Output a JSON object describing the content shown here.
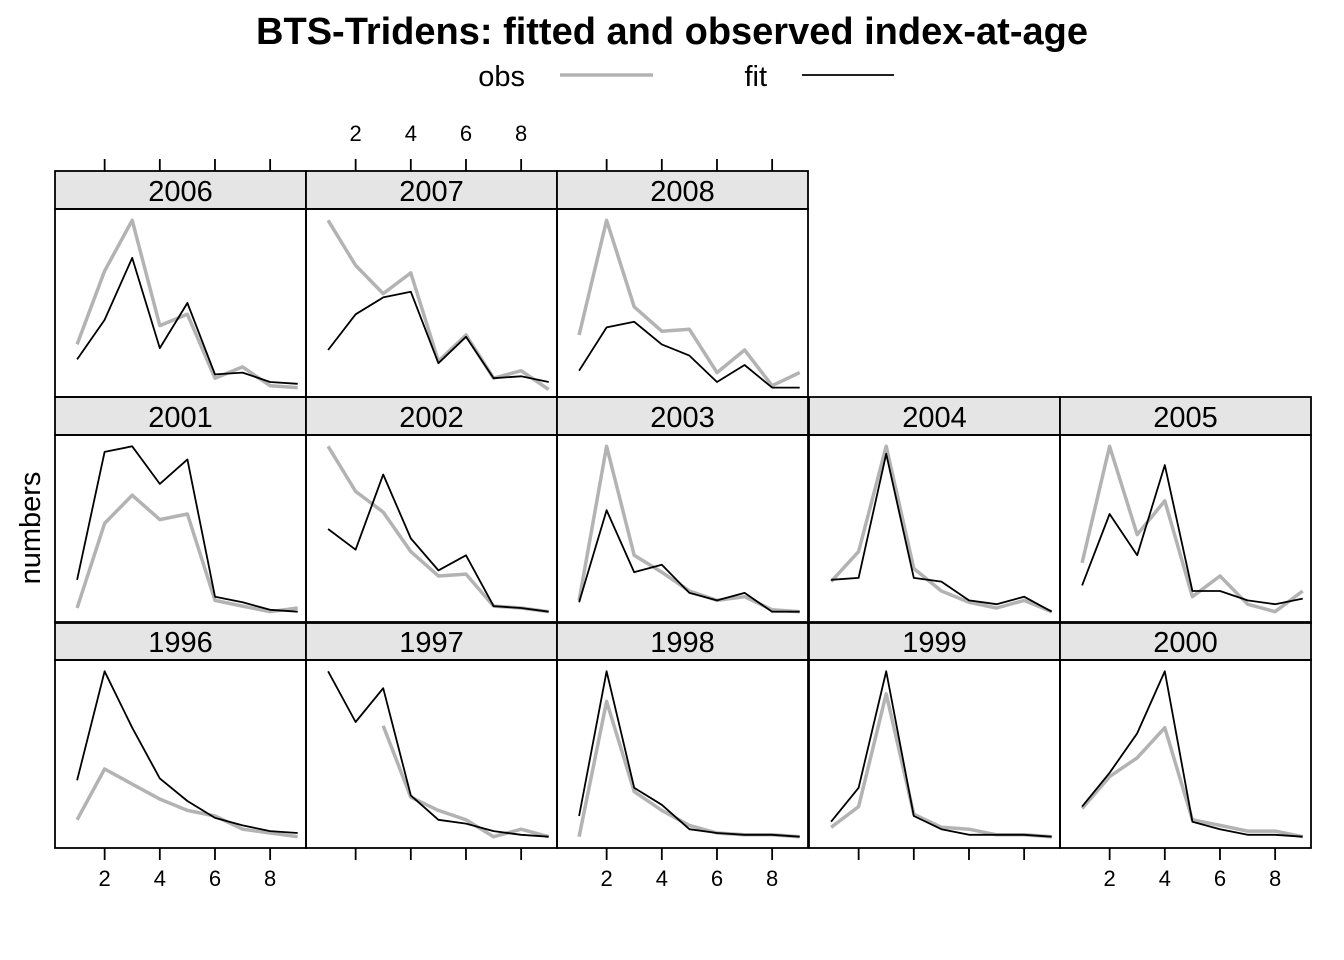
{
  "chart_data": {
    "type": "line",
    "title": "BTS-Tridens: fitted and observed index-at-age",
    "ylabel": "numbers",
    "x": [
      1,
      2,
      3,
      4,
      5,
      6,
      7,
      8,
      9
    ],
    "xlim": [
      0.2,
      9.3
    ],
    "ylim": [
      0,
      1
    ],
    "x_ticks": [
      2,
      4,
      6,
      8
    ],
    "legend": {
      "placement": "top",
      "entries": [
        {
          "name": "obs",
          "color": "#b3b3b3",
          "width": 3.5
        },
        {
          "name": "fit",
          "color": "#000000",
          "width": 1.8
        }
      ]
    },
    "strip_color": "#e5e5e5",
    "panels": [
      {
        "year": "1996",
        "obs": [
          0.15,
          0.42,
          0.34,
          0.26,
          0.2,
          0.17,
          0.1,
          0.08,
          0.06
        ],
        "fit": [
          0.36,
          0.94,
          0.64,
          0.37,
          0.25,
          0.16,
          0.12,
          0.09,
          0.08
        ]
      },
      {
        "year": "1997",
        "obs": [
          null,
          null,
          0.65,
          0.27,
          0.2,
          0.15,
          0.06,
          0.1,
          0.06
        ],
        "fit": [
          0.94,
          0.67,
          0.85,
          0.28,
          0.15,
          0.13,
          0.09,
          0.07,
          0.06
        ]
      },
      {
        "year": "1998",
        "obs": [
          0.06,
          0.78,
          0.3,
          0.2,
          0.12,
          0.08,
          0.07,
          0.07,
          0.06
        ],
        "fit": [
          0.17,
          0.94,
          0.32,
          0.23,
          0.1,
          0.08,
          0.07,
          0.07,
          0.06
        ]
      },
      {
        "year": "1999",
        "obs": [
          0.11,
          0.22,
          0.82,
          0.18,
          0.11,
          0.1,
          0.07,
          0.07,
          0.06
        ],
        "fit": [
          0.14,
          0.32,
          0.94,
          0.17,
          0.1,
          0.07,
          0.07,
          0.07,
          0.06
        ]
      },
      {
        "year": "2000",
        "obs": [
          0.21,
          0.38,
          0.48,
          0.64,
          0.15,
          0.12,
          0.09,
          0.09,
          0.06
        ],
        "fit": [
          0.22,
          0.4,
          0.61,
          0.94,
          0.14,
          0.1,
          0.07,
          0.07,
          0.06
        ]
      },
      {
        "year": "2001",
        "obs": [
          0.08,
          0.53,
          0.68,
          0.55,
          0.58,
          0.12,
          0.09,
          0.06,
          0.08
        ],
        "fit": [
          0.23,
          0.91,
          0.94,
          0.74,
          0.87,
          0.14,
          0.11,
          0.07,
          0.06
        ]
      },
      {
        "year": "2002",
        "obs": [
          0.94,
          0.7,
          0.59,
          0.38,
          0.25,
          0.26,
          0.09,
          0.08,
          0.06
        ],
        "fit": [
          0.5,
          0.39,
          0.79,
          0.45,
          0.28,
          0.36,
          0.09,
          0.08,
          0.06
        ]
      },
      {
        "year": "2003",
        "obs": [
          0.12,
          0.94,
          0.36,
          0.27,
          0.17,
          0.12,
          0.14,
          0.07,
          0.06
        ],
        "fit": [
          0.11,
          0.6,
          0.27,
          0.31,
          0.16,
          0.12,
          0.16,
          0.06,
          0.06
        ]
      },
      {
        "year": "2004",
        "obs": [
          0.22,
          0.38,
          0.94,
          0.29,
          0.17,
          0.11,
          0.08,
          0.12,
          0.06
        ],
        "fit": [
          0.23,
          0.24,
          0.9,
          0.24,
          0.22,
          0.12,
          0.1,
          0.14,
          0.06
        ]
      },
      {
        "year": "2005",
        "obs": [
          0.32,
          0.94,
          0.47,
          0.65,
          0.14,
          0.25,
          0.1,
          0.06,
          0.17
        ],
        "fit": [
          0.2,
          0.58,
          0.36,
          0.84,
          0.17,
          0.17,
          0.12,
          0.1,
          0.13
        ]
      },
      {
        "year": "2006",
        "obs": [
          0.28,
          0.67,
          0.94,
          0.38,
          0.44,
          0.1,
          0.16,
          0.06,
          0.05
        ],
        "fit": [
          0.2,
          0.41,
          0.74,
          0.26,
          0.5,
          0.12,
          0.13,
          0.08,
          0.07
        ]
      },
      {
        "year": "2007",
        "obs": [
          0.94,
          0.7,
          0.55,
          0.66,
          0.19,
          0.33,
          0.1,
          0.14,
          0.04
        ],
        "fit": [
          0.25,
          0.44,
          0.53,
          0.56,
          0.18,
          0.32,
          0.1,
          0.11,
          0.08
        ]
      },
      {
        "year": "2008",
        "obs": [
          0.33,
          0.94,
          0.48,
          0.35,
          0.36,
          0.13,
          0.25,
          0.06,
          0.13
        ],
        "fit": [
          0.14,
          0.37,
          0.4,
          0.28,
          0.22,
          0.08,
          0.17,
          0.05,
          0.05
        ]
      }
    ]
  }
}
